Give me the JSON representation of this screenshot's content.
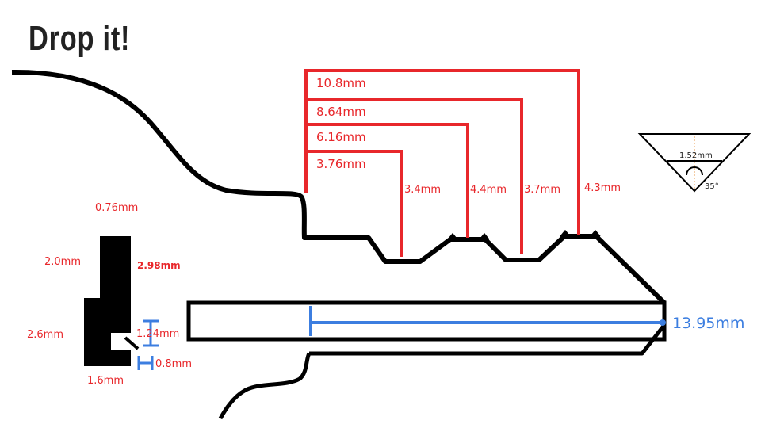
{
  "title": "Drop it!",
  "colors": {
    "outline": "#000000",
    "cut_dimensions": "#e8272b",
    "blade_dimension": "#3c7ee0",
    "background": "#ffffff"
  },
  "cut_depths": [
    "10.8mm",
    "8.64mm",
    "6.16mm",
    "3.76mm"
  ],
  "cut_spacings": [
    "3.4mm",
    "4.4mm",
    "3.7mm",
    "4.3mm"
  ],
  "profile": {
    "top_width": "0.76mm",
    "upper_height": "2.0mm",
    "upper_right_height": "2.98mm",
    "lower_height": "2.6mm",
    "bottom_width": "1.6mm",
    "groove_height": "1.24mm",
    "groove_offset": "0.8mm"
  },
  "blade_length": "13.95mm",
  "cut_angle": {
    "width": "1.52mm",
    "angle": "35°"
  }
}
